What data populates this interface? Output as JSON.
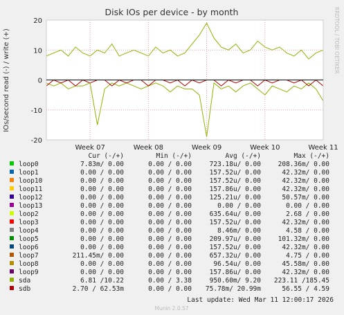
{
  "chart_data": {
    "type": "line",
    "title": "Disk IOs per device - by month",
    "y_label": "IOs/second read (-) / write (+)",
    "side_text": "RRDTOOL / TOBI OETIKER",
    "footer": "Munin 2.0.57",
    "last_update": "Last update: Wed Mar 11 12:00:17 2026",
    "grid": true,
    "columns": [
      "Cur (-/+)",
      "Min (-/+)",
      "Avg (-/+)",
      "Max (-/+)"
    ],
    "xlim": [
      6.25,
      11
    ],
    "ylim": [
      -20,
      20
    ],
    "yticks": [
      20,
      10,
      0,
      -10,
      -20
    ],
    "xticks": [
      {
        "value": 7,
        "label": "Week 07"
      },
      {
        "value": 8,
        "label": "Week 08"
      },
      {
        "value": 9,
        "label": "Week 09"
      },
      {
        "value": 10,
        "label": "Week 10"
      },
      {
        "value": 11,
        "label": "Week 11"
      }
    ],
    "x": [
      6.25,
      6.375,
      6.5,
      6.625,
      6.75,
      6.875,
      7,
      7.125,
      7.25,
      7.375,
      7.5,
      7.625,
      7.75,
      7.875,
      8,
      8.125,
      8.25,
      8.375,
      8.5,
      8.625,
      8.75,
      8.875,
      9,
      9.125,
      9.25,
      9.375,
      9.5,
      9.625,
      9.75,
      9.875,
      10,
      10.125,
      10.25,
      10.375,
      10.5,
      10.625,
      10.75,
      10.875,
      11
    ],
    "series": [
      {
        "name": "loop0",
        "color": "#00cc00",
        "stats": [
          "7.83m/  0.00",
          "0.00 /  0.00",
          "723.18u/  0.00",
          "208.36m/  0.00"
        ]
      },
      {
        "name": "loop1",
        "color": "#0066b3",
        "stats": [
          "0.00 /  0.00",
          "0.00 /  0.00",
          "157.52u/  0.00",
          "42.32m/  0.00"
        ]
      },
      {
        "name": "loop10",
        "color": "#ff8000",
        "stats": [
          "0.00 /  0.00",
          "0.00 /  0.00",
          "157.52u/  0.00",
          "42.32m/  0.00"
        ]
      },
      {
        "name": "loop11",
        "color": "#ffcc00",
        "stats": [
          "0.00 /  0.00",
          "0.00 /  0.00",
          "157.86u/  0.00",
          "42.32m/  0.00"
        ]
      },
      {
        "name": "loop12",
        "color": "#330099",
        "stats": [
          "0.00 /  0.00",
          "0.00 /  0.00",
          "125.21u/  0.00",
          "50.57m/  0.00"
        ]
      },
      {
        "name": "loop13",
        "color": "#990099",
        "stats": [
          "0.00 /  0.00",
          "0.00 /  0.00",
          "0.00 /  0.00",
          "0.00 /  0.00"
        ]
      },
      {
        "name": "loop2",
        "color": "#ccff00",
        "stats": [
          "0.00 /  0.00",
          "0.00 /  0.00",
          "635.64u/  0.00",
          "2.68 /  0.00"
        ]
      },
      {
        "name": "loop3",
        "color": "#ff0000",
        "stats": [
          "0.00 /  0.00",
          "0.00 /  0.00",
          "157.52u/  0.00",
          "42.32m/  0.00"
        ]
      },
      {
        "name": "loop4",
        "color": "#808080",
        "stats": [
          "0.00 /  0.00",
          "0.00 /  0.00",
          "8.46m/  0.00",
          "4.58 /  0.00"
        ]
      },
      {
        "name": "loop5",
        "color": "#008f00",
        "stats": [
          "0.00 /  0.00",
          "0.00 /  0.00",
          "209.97u/  0.00",
          "101.32m/  0.00"
        ]
      },
      {
        "name": "loop6",
        "color": "#00487d",
        "stats": [
          "0.00 /  0.00",
          "0.00 /  0.00",
          "157.52u/  0.00",
          "42.32m/  0.00"
        ]
      },
      {
        "name": "loop7",
        "color": "#b35a00",
        "stats": [
          "211.45m/  0.00",
          "0.00 /  0.00",
          "657.32u/  0.00",
          "4.75 /  0.00"
        ]
      },
      {
        "name": "loop8",
        "color": "#b38f00",
        "stats": [
          "0.00 /  0.00",
          "0.00 /  0.00",
          "96.54u/  0.00",
          "45.58m/  0.00"
        ]
      },
      {
        "name": "loop9",
        "color": "#6b006b",
        "stats": [
          "0.00 /  0.00",
          "0.00 /  0.00",
          "157.86u/  0.00",
          "42.32m/  0.00"
        ]
      },
      {
        "name": "sda",
        "color": "#8fb300",
        "stats": [
          "6.81 /10.22",
          "0.00 / 3.38",
          "950.60m/ 9.20",
          "223.11 /185.45"
        ],
        "values": [
          8,
          9,
          10,
          8,
          11,
          9,
          8,
          10,
          9,
          12,
          8,
          9,
          10,
          9,
          8,
          11,
          9,
          10,
          8,
          9,
          12,
          15,
          19,
          14,
          11,
          10,
          12,
          9,
          10,
          13,
          11,
          10,
          11,
          9,
          8,
          10,
          7,
          9,
          10
        ],
        "values_read": [
          -1,
          -2,
          -1,
          -3,
          -2,
          -2,
          -1,
          -15,
          -3,
          -1,
          -2,
          -1,
          -2,
          -3,
          -2,
          -1,
          -2,
          -4,
          -2,
          -3,
          -3,
          -5,
          -19,
          -1,
          -3,
          -2,
          -4,
          -2,
          -1,
          -3,
          -5,
          -2,
          -3,
          -4,
          -2,
          -3,
          -1,
          -3,
          -7
        ]
      },
      {
        "name": "sdb",
        "color": "#b30000",
        "stats": [
          "2.70 / 62.53m",
          "0.00 /  0.00",
          "75.78m/ 20.99m",
          "56.55 /  4.59"
        ],
        "values_read": [
          -2,
          0,
          -1,
          0,
          -2,
          0,
          -1,
          0,
          0,
          -2,
          0,
          -1,
          0,
          0,
          -2,
          0,
          0,
          -1,
          0,
          -2,
          0,
          -1,
          0,
          0,
          -2,
          0,
          -1,
          0,
          0,
          -2,
          0,
          -1,
          0,
          0,
          -1,
          0,
          -2,
          0,
          -2
        ]
      }
    ]
  }
}
